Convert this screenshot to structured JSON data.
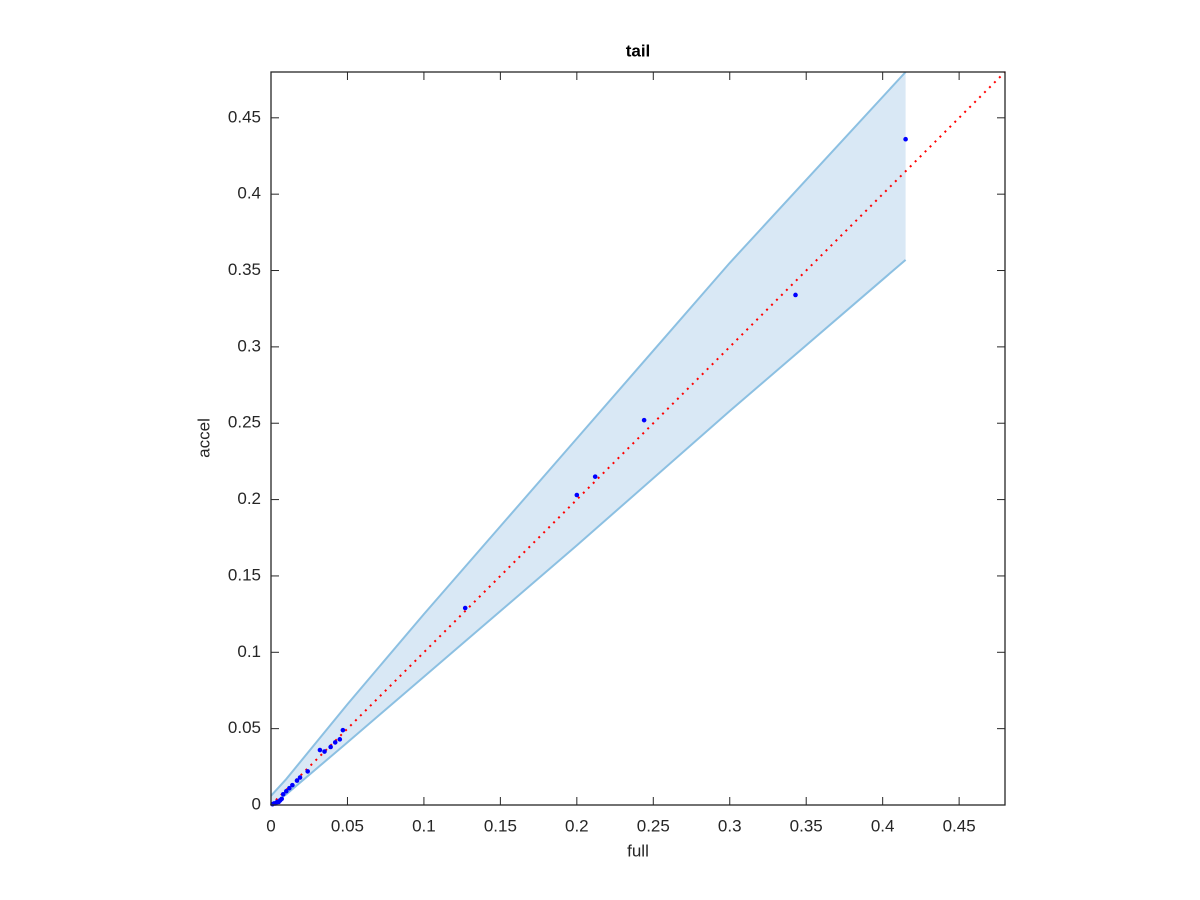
{
  "chart_data": {
    "type": "scatter",
    "title": "tail",
    "x_label": "full",
    "y_label": "accel",
    "xlim": [
      0,
      0.48
    ],
    "ylim": [
      0,
      0.48
    ],
    "xticks": [
      0,
      0.05,
      0.1,
      0.15,
      0.2,
      0.25,
      0.3,
      0.35,
      0.4,
      0.45
    ],
    "yticks": [
      0,
      0.05,
      0.1,
      0.15,
      0.2,
      0.25,
      0.3,
      0.35,
      0.4,
      0.45
    ],
    "x": [
      0.001,
      0.002,
      0.003,
      0.004,
      0.005,
      0.006,
      0.007,
      0.008,
      0.01,
      0.012,
      0.014,
      0.017,
      0.019,
      0.024,
      0.032,
      0.035,
      0.039,
      0.042,
      0.045,
      0.047,
      0.127,
      0.2,
      0.212,
      0.244,
      0.343,
      0.415
    ],
    "values": [
      0.0005,
      0.001,
      0.001,
      0.002,
      0.002,
      0.003,
      0.004,
      0.007,
      0.009,
      0.011,
      0.013,
      0.016,
      0.018,
      0.022,
      0.036,
      0.035,
      0.038,
      0.041,
      0.043,
      0.049,
      0.129,
      0.203,
      0.215,
      0.252,
      0.334,
      0.436
    ],
    "color": "#0000ff",
    "band": {
      "x": [
        0,
        0.01,
        0.05,
        0.1,
        0.2,
        0.3,
        0.415
      ],
      "upper": [
        0.006,
        0.017,
        0.066,
        0.125,
        0.24,
        0.355,
        0.48
      ],
      "lower": [
        0,
        0.007,
        0.041,
        0.084,
        0.17,
        0.258,
        0.357
      ],
      "fill_color": "#d9e8f5",
      "edge_color": "#8cc0e2"
    },
    "reference": {
      "x": [
        0,
        0.48
      ],
      "values": [
        0,
        0.48
      ],
      "color": "#ff0000"
    }
  }
}
